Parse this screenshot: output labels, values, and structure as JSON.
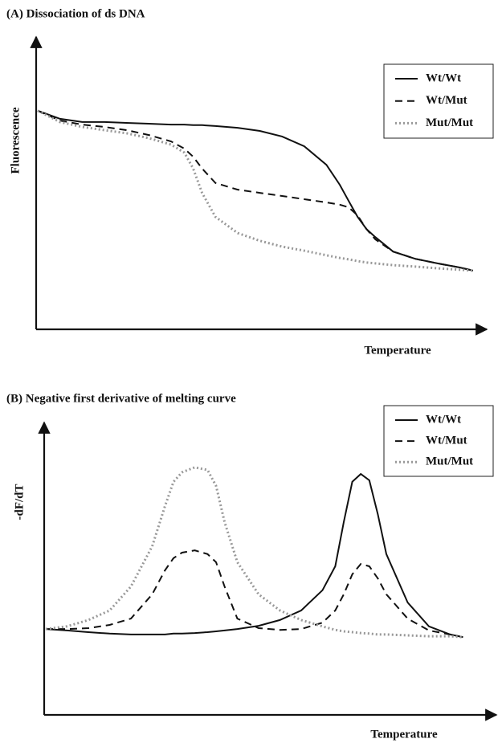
{
  "chart_data": [
    {
      "type": "line",
      "title": "(A) Dissociation of ds DNA",
      "x_label": "Temperature",
      "y_label": "Fluorescence",
      "xlim": [
        0,
        100
      ],
      "ylim": [
        0,
        100
      ],
      "legend": "upper right",
      "x": [
        0,
        5,
        10,
        15,
        20,
        25,
        30,
        33,
        35,
        37,
        40,
        45,
        50,
        55,
        60,
        65,
        68,
        70,
        72,
        74,
        76,
        80,
        85,
        90,
        95,
        98
      ],
      "series": [
        {
          "name": "Wt/Wt",
          "color": "#111111",
          "dash": "solid",
          "values": [
            75.6,
            72.8,
            71.7,
            71.7,
            71.4,
            71.1,
            70.8,
            70.8,
            70.6,
            70.6,
            70.3,
            69.7,
            68.6,
            66.7,
            63.3,
            56.9,
            50,
            44.4,
            38.9,
            34.7,
            31.9,
            26.9,
            24.4,
            22.8,
            21.4,
            20.3
          ]
        },
        {
          "name": "Wt/Mut",
          "color": "#111111",
          "dash": "dashed",
          "values": [
            75.6,
            72.2,
            70.8,
            70,
            68.9,
            67.2,
            65,
            62.5,
            59.7,
            55.6,
            50.6,
            48.3,
            47.2,
            46.1,
            45,
            43.9,
            43.1,
            42.2,
            39.4,
            34.7,
            31.1,
            26.9,
            24.4,
            22.8,
            21.4,
            20.3
          ]
        },
        {
          "name": "Mut/Mut",
          "color": "#999999",
          "dash": "dotted",
          "values": [
            75.6,
            71.7,
            70,
            68.9,
            67.8,
            66.1,
            63.9,
            61.1,
            55.6,
            47.2,
            38.9,
            33.3,
            30.6,
            28.6,
            27.2,
            25.6,
            24.7,
            24.2,
            23.6,
            23.1,
            22.8,
            22.2,
            21.7,
            21.1,
            20.6,
            20.3
          ]
        }
      ]
    },
    {
      "type": "line",
      "title": "(B) Negative first derivative of melting curve",
      "x_label": "Temperature",
      "y_label": "-dF/dT",
      "xlim": [
        0,
        100
      ],
      "ylim": [
        0,
        100
      ],
      "legend": "upper right",
      "x": [
        0,
        5,
        10,
        15,
        20,
        25,
        28,
        30,
        32,
        35,
        38,
        40,
        42,
        45,
        50,
        55,
        60,
        65,
        68,
        70,
        72,
        74,
        76,
        78,
        80,
        85,
        90,
        95,
        98
      ],
      "series": [
        {
          "name": "Wt/Wt",
          "color": "#111111",
          "dash": "solid",
          "values": [
            29.7,
            29.2,
            28.6,
            28.1,
            27.8,
            27.8,
            27.8,
            28.1,
            28.1,
            28.3,
            28.6,
            28.9,
            29.2,
            29.7,
            30.8,
            32.8,
            36.1,
            43.1,
            51.4,
            66.7,
            80.6,
            83.3,
            81.1,
            69.4,
            55.6,
            38.9,
            30.6,
            27.8,
            26.9
          ]
        },
        {
          "name": "Wt/Mut",
          "color": "#111111",
          "dash": "dashed",
          "values": [
            29.7,
            29.7,
            30,
            31.1,
            33.3,
            41.7,
            50,
            54.2,
            56.1,
            56.9,
            55.6,
            52.8,
            44.4,
            33.3,
            30,
            29.4,
            29.7,
            31.9,
            36.1,
            41.7,
            48.6,
            52.2,
            51.4,
            47.2,
            41.7,
            33.3,
            29.2,
            27.8,
            26.9
          ]
        },
        {
          "name": "Mut/Mut",
          "color": "#999999",
          "dash": "dotted",
          "values": [
            29.7,
            30.6,
            32.8,
            36.1,
            44.4,
            58.3,
            72.2,
            80.6,
            83.9,
            85.6,
            84.7,
            79.2,
            66.7,
            52.8,
            41.7,
            36.1,
            32.8,
            30.6,
            29.4,
            28.9,
            28.6,
            28.3,
            28.1,
            27.8,
            27.8,
            27.5,
            27.2,
            27.2,
            26.9
          ]
        }
      ]
    }
  ]
}
